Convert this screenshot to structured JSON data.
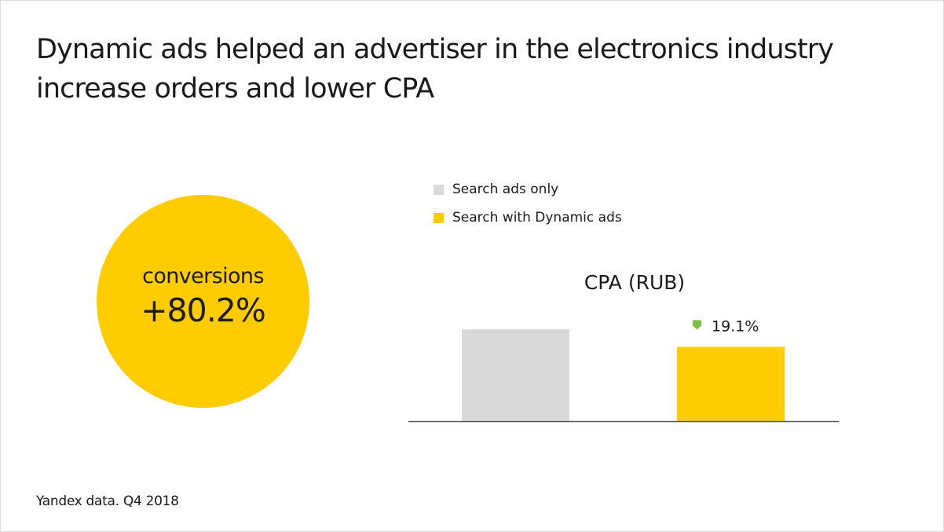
{
  "title_lines": [
    "Dynamic ads helped an advertiser in the electronics industry",
    "increase orders and lower CPA"
  ],
  "highlight": {
    "label": "conversions",
    "value": "+80.2%",
    "color": "#FFCC00"
  },
  "legend": [
    {
      "name": "Search ads only",
      "color": "#D9D9D9"
    },
    {
      "name": "Search with Dynamic ads",
      "color": "#FFCC00"
    }
  ],
  "chart_data": {
    "type": "bar",
    "title": "CPA (RUB)",
    "categories": [
      "Search ads only",
      "Search with Dynamic ads"
    ],
    "values": [
      100,
      80.9
    ],
    "colors": [
      "#D9D9D9",
      "#FFCC00"
    ],
    "ylim": [
      0,
      100
    ],
    "annotation": {
      "bar_index": 1,
      "text": "19.1%",
      "icon": "down-arrow-icon",
      "icon_color": "#7BC043"
    },
    "grid": false,
    "legend_position": "top"
  },
  "footnote": "Yandex data. Q4 2018"
}
